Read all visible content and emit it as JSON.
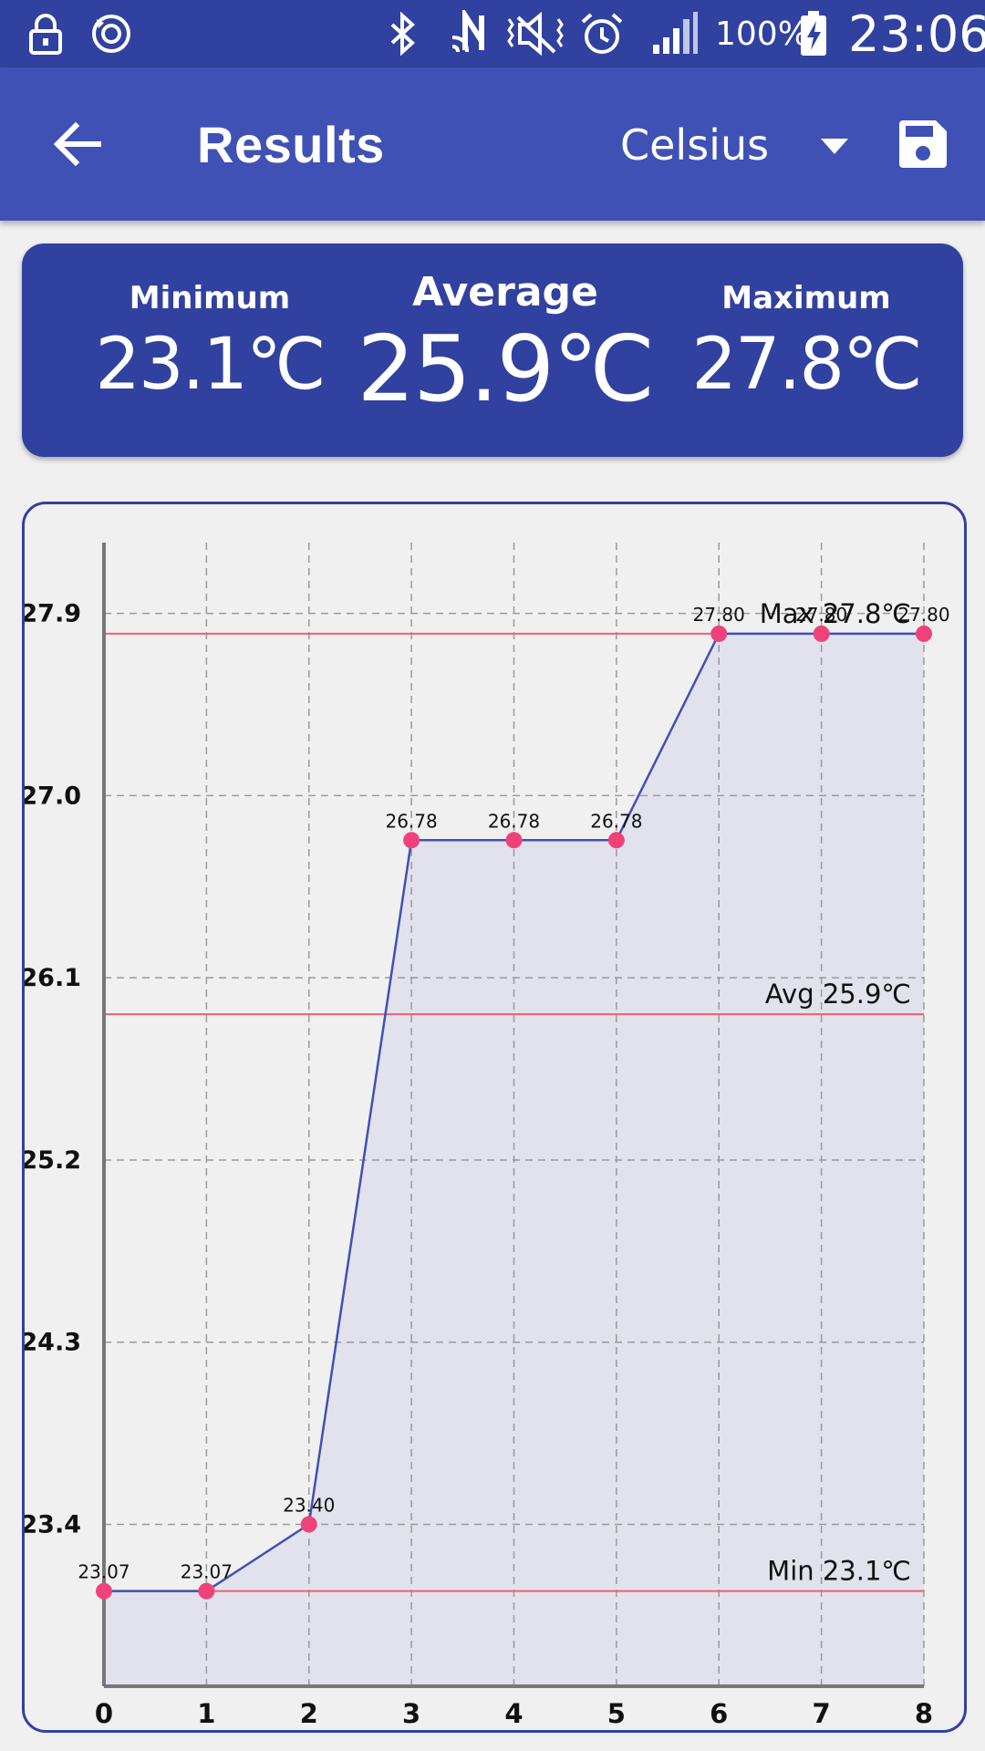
{
  "status_bar": {
    "battery": "100%",
    "time": "23:06",
    "icons": [
      "lock-icon",
      "sync-icon",
      "bluetooth-icon",
      "nfc-icon",
      "mute-icon",
      "alarm-icon",
      "signal-icon",
      "battery-charging-icon"
    ]
  },
  "app_bar": {
    "back_icon": "arrow-back-icon",
    "title": "Results",
    "unit_selected": "Celsius",
    "unit_dropdown_icon": "dropdown-arrow-icon",
    "save_icon": "save-icon"
  },
  "summary": {
    "min_label": "Minimum",
    "min_value": "23.1℃",
    "avg_label": "Average",
    "avg_value": "25.9℃",
    "max_label": "Maximum",
    "max_value": "27.8℃"
  },
  "chart_data": {
    "type": "line",
    "x": [
      0,
      1,
      2,
      3,
      4,
      5,
      6,
      7,
      8
    ],
    "x_tick_labels": [
      "0",
      "1",
      "2",
      "3",
      "4",
      "5",
      "6",
      "7",
      "8"
    ],
    "series": [
      {
        "values": [
          23.07,
          23.07,
          23.4,
          26.78,
          26.78,
          26.78,
          27.8,
          27.8,
          27.8
        ],
        "point_labels": [
          "23.07",
          "23.07",
          "23.40",
          "26.78",
          "26.78",
          "26.78",
          "27.80",
          "27.80",
          "27.80"
        ],
        "line_color": "#3f51b5",
        "point_color": "#f0427a",
        "fill_color": "#e1e2ec"
      }
    ],
    "y_ticks": [
      23.4,
      24.3,
      25.2,
      26.1,
      27.0,
      27.9
    ],
    "y_tick_labels": [
      "23.4",
      "24.3",
      "25.2",
      "26.1",
      "27.0",
      "27.9"
    ],
    "ylim": [
      22.6,
      28.25
    ],
    "xlim": [
      0,
      8
    ],
    "grid": true,
    "reference_lines": [
      {
        "label": "Max 27.8℃",
        "value": 27.8,
        "color": "#f06070"
      },
      {
        "label": "Avg 25.9℃",
        "value": 25.92,
        "color": "#f06070"
      },
      {
        "label": "Min 23.1℃",
        "value": 23.07,
        "color": "#f06070"
      }
    ],
    "xlabel": "",
    "ylabel": "",
    "title": ""
  }
}
